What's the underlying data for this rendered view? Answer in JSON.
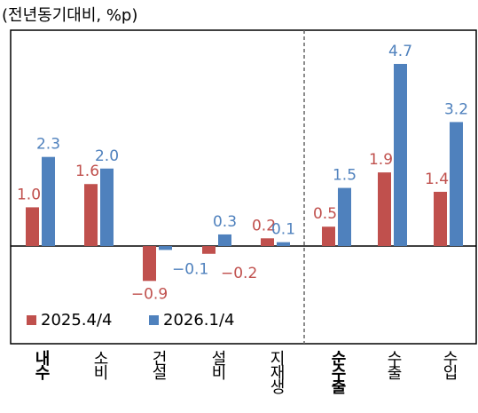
{
  "chart_data": {
    "type": "bar",
    "subtitle": "(전년동기대비, %p)",
    "categories": [
      "내수",
      "소비",
      "건설",
      "설비",
      "지재생",
      "순수출",
      "수출",
      "수입"
    ],
    "bold": [
      true,
      false,
      false,
      false,
      false,
      true,
      false,
      false
    ],
    "series": [
      {
        "name": "2025.4/4",
        "color": "#c0504d",
        "values": [
          1.0,
          1.6,
          -0.9,
          -0.2,
          0.2,
          0.5,
          1.9,
          1.4
        ],
        "value_labels": [
          "1.0",
          "1.6",
          "−0.9",
          "−0.2",
          "0.2",
          "0.5",
          "1.9",
          "1.4"
        ]
      },
      {
        "name": "2026.1/4",
        "color": "#4f81bd",
        "values": [
          2.3,
          2.0,
          -0.1,
          0.3,
          0.1,
          1.5,
          4.7,
          3.2
        ],
        "value_labels": [
          "2.3",
          "2.0",
          "−0.1",
          "0.3",
          "0.1",
          "1.5",
          "4.7",
          "3.2"
        ]
      }
    ],
    "ylim": [
      -2.52,
      5.57
    ],
    "legend": "lower left"
  }
}
